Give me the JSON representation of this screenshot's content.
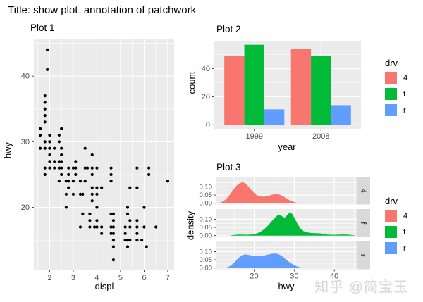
{
  "page": {
    "title": "Title: show plot_annotation of patchwork",
    "watermark": "知乎 @简宝玉"
  },
  "colors": {
    "panel": "#EBEBEB",
    "grid": "#FFFFFF",
    "strip": "#D9D9D9",
    "axis_text": "#4D4D4D",
    "tick": "#333333",
    "point": "#000000",
    "drv_4": "#F8766D",
    "drv_f": "#00BA38",
    "drv_r": "#619CFF"
  },
  "chart_data": [
    {
      "type": "scatter",
      "title": "Plot 1",
      "xlabel": "displ",
      "ylabel": "hwy",
      "x_ticks": [
        2,
        3,
        4,
        5,
        6,
        7
      ],
      "x_minor": [
        1.5,
        2.5,
        3.5,
        4.5,
        5.5,
        6.5
      ],
      "y_ticks": [
        20,
        30,
        40
      ],
      "y_minor": [
        15,
        25,
        35,
        45
      ],
      "xlim": [
        1.33,
        7.27
      ],
      "ylim": [
        10.4,
        45.6
      ],
      "points": [
        [
          1.6,
          29
        ],
        [
          1.6,
          31
        ],
        [
          1.6,
          32
        ],
        [
          1.8,
          25
        ],
        [
          1.8,
          26
        ],
        [
          1.8,
          29
        ],
        [
          1.8,
          30
        ],
        [
          1.8,
          33
        ],
        [
          1.8,
          34
        ],
        [
          1.8,
          35
        ],
        [
          1.8,
          36
        ],
        [
          1.8,
          37
        ],
        [
          1.9,
          41
        ],
        [
          1.9,
          44
        ],
        [
          2.0,
          26
        ],
        [
          2.0,
          27
        ],
        [
          2.0,
          28
        ],
        [
          2.0,
          29
        ],
        [
          2.0,
          30
        ],
        [
          2.0,
          31
        ],
        [
          2.2,
          26
        ],
        [
          2.2,
          27
        ],
        [
          2.2,
          29
        ],
        [
          2.4,
          24
        ],
        [
          2.4,
          26
        ],
        [
          2.4,
          27
        ],
        [
          2.4,
          30
        ],
        [
          2.4,
          31
        ],
        [
          2.5,
          25
        ],
        [
          2.5,
          26
        ],
        [
          2.5,
          27
        ],
        [
          2.5,
          28
        ],
        [
          2.5,
          29
        ],
        [
          2.5,
          32
        ],
        [
          2.7,
          20
        ],
        [
          2.7,
          22
        ],
        [
          2.7,
          24
        ],
        [
          2.8,
          23
        ],
        [
          2.8,
          24
        ],
        [
          2.8,
          25
        ],
        [
          2.8,
          26
        ],
        [
          3.0,
          22
        ],
        [
          3.0,
          24
        ],
        [
          3.0,
          26
        ],
        [
          3.1,
          25
        ],
        [
          3.1,
          26
        ],
        [
          3.1,
          27
        ],
        [
          3.3,
          17
        ],
        [
          3.3,
          22
        ],
        [
          3.3,
          24
        ],
        [
          3.4,
          19
        ],
        [
          3.4,
          22
        ],
        [
          3.5,
          24
        ],
        [
          3.5,
          26
        ],
        [
          3.5,
          29
        ],
        [
          3.6,
          26
        ],
        [
          3.7,
          17
        ],
        [
          3.7,
          18
        ],
        [
          3.7,
          19
        ],
        [
          3.8,
          21
        ],
        [
          3.8,
          22
        ],
        [
          3.8,
          23
        ],
        [
          3.8,
          25
        ],
        [
          3.8,
          26
        ],
        [
          3.8,
          28
        ],
        [
          3.9,
          17
        ],
        [
          4.0,
          17
        ],
        [
          4.0,
          18
        ],
        [
          4.0,
          20
        ],
        [
          4.0,
          22
        ],
        [
          4.0,
          23
        ],
        [
          4.0,
          26
        ],
        [
          4.2,
          16
        ],
        [
          4.2,
          17
        ],
        [
          4.2,
          23
        ],
        [
          4.6,
          16
        ],
        [
          4.6,
          17
        ],
        [
          4.6,
          19
        ],
        [
          4.6,
          24
        ],
        [
          4.6,
          25
        ],
        [
          4.6,
          26
        ],
        [
          4.7,
          12
        ],
        [
          4.7,
          14
        ],
        [
          4.7,
          15
        ],
        [
          4.7,
          16
        ],
        [
          4.7,
          17
        ],
        [
          4.7,
          18
        ],
        [
          4.7,
          19
        ],
        [
          5.2,
          15
        ],
        [
          5.2,
          16
        ],
        [
          5.2,
          17
        ],
        [
          5.3,
          14
        ],
        [
          5.3,
          15
        ],
        [
          5.3,
          19
        ],
        [
          5.3,
          20
        ],
        [
          5.4,
          15
        ],
        [
          5.4,
          17
        ],
        [
          5.4,
          18
        ],
        [
          5.4,
          23
        ],
        [
          5.7,
          15
        ],
        [
          5.7,
          16
        ],
        [
          5.7,
          17
        ],
        [
          5.7,
          18
        ],
        [
          5.7,
          23
        ],
        [
          5.7,
          26
        ],
        [
          5.9,
          15
        ],
        [
          6.0,
          17
        ],
        [
          6.0,
          20
        ],
        [
          6.1,
          14
        ],
        [
          6.2,
          25
        ],
        [
          6.2,
          26
        ],
        [
          6.5,
          17
        ],
        [
          7.0,
          24
        ]
      ]
    },
    {
      "type": "bar",
      "title": "Plot 2",
      "xlabel": "year",
      "ylabel": "count",
      "categories": [
        "1999",
        "2008"
      ],
      "series": [
        {
          "name": "4",
          "color": "#F8766D",
          "values": [
            49,
            54
          ]
        },
        {
          "name": "f",
          "color": "#00BA38",
          "values": [
            57,
            49
          ]
        },
        {
          "name": "r",
          "color": "#619CFF",
          "values": [
            11,
            14
          ]
        }
      ],
      "y_ticks": [
        0,
        20,
        40
      ],
      "y_minor": [
        10,
        30,
        50
      ],
      "ylim": [
        0,
        57
      ],
      "legend": {
        "title": "drv",
        "items": [
          {
            "label": "4",
            "color": "#F8766D"
          },
          {
            "label": "f",
            "color": "#00BA38"
          },
          {
            "label": "r",
            "color": "#619CFF"
          }
        ]
      }
    },
    {
      "type": "density",
      "title": "Plot 3",
      "xlabel": "hwy",
      "ylabel": "density",
      "x_ticks": [
        20,
        30,
        40
      ],
      "x_minor": [
        15,
        25,
        35,
        45
      ],
      "y_ticks": [
        0,
        0.05,
        0.1
      ],
      "y_tick_labels": [
        "0.00",
        "0.05",
        "0.10"
      ],
      "y_minor": [
        0.025,
        0.075,
        0.125
      ],
      "xlim": [
        10.4,
        45.6
      ],
      "facets": [
        {
          "label": "4",
          "color": "#F8766D",
          "curve": [
            [
              11,
              0.001
            ],
            [
              12,
              0.008
            ],
            [
              13,
              0.025
            ],
            [
              14,
              0.055
            ],
            [
              15,
              0.09
            ],
            [
              16,
              0.117
            ],
            [
              17,
              0.128
            ],
            [
              17.8,
              0.122
            ],
            [
              18.6,
              0.1
            ],
            [
              19.5,
              0.075
            ],
            [
              20.5,
              0.052
            ],
            [
              21.5,
              0.041
            ],
            [
              22.5,
              0.04
            ],
            [
              23.5,
              0.045
            ],
            [
              24.5,
              0.052
            ],
            [
              25.5,
              0.056
            ],
            [
              26.3,
              0.053
            ],
            [
              27.2,
              0.043
            ],
            [
              28,
              0.03
            ],
            [
              29,
              0.017
            ],
            [
              30,
              0.007
            ],
            [
              31,
              0.002
            ],
            [
              31.5,
              0
            ]
          ]
        },
        {
          "label": "f",
          "color": "#00BA38",
          "curve": [
            [
              14,
              0.001
            ],
            [
              15,
              0.004
            ],
            [
              16,
              0.006
            ],
            [
              17,
              0.006
            ],
            [
              18,
              0.005
            ],
            [
              19,
              0.006
            ],
            [
              20,
              0.009
            ],
            [
              21,
              0.016
            ],
            [
              22,
              0.03
            ],
            [
              23,
              0.05
            ],
            [
              24,
              0.077
            ],
            [
              25,
              0.105
            ],
            [
              25.8,
              0.124
            ],
            [
              26.3,
              0.128
            ],
            [
              27,
              0.117
            ],
            [
              27.6,
              0.109
            ],
            [
              28.3,
              0.127
            ],
            [
              28.9,
              0.143
            ],
            [
              29.5,
              0.132
            ],
            [
              30.1,
              0.105
            ],
            [
              30.8,
              0.072
            ],
            [
              31.5,
              0.045
            ],
            [
              32.3,
              0.028
            ],
            [
              33.2,
              0.02
            ],
            [
              34.2,
              0.016
            ],
            [
              35.2,
              0.015
            ],
            [
              36.2,
              0.014
            ],
            [
              37.2,
              0.011
            ],
            [
              38.2,
              0.007
            ],
            [
              39.2,
              0.005
            ],
            [
              40.2,
              0.005
            ],
            [
              41.2,
              0.006
            ],
            [
              42.2,
              0.007
            ],
            [
              43.2,
              0.006
            ],
            [
              44.2,
              0.004
            ],
            [
              45,
              0.002
            ],
            [
              45.5,
              0
            ]
          ]
        },
        {
          "label": "r",
          "color": "#619CFF",
          "curve": [
            [
              13,
              0.002
            ],
            [
              14,
              0.012
            ],
            [
              15,
              0.032
            ],
            [
              16,
              0.06
            ],
            [
              17,
              0.078
            ],
            [
              17.8,
              0.083
            ],
            [
              18.6,
              0.08
            ],
            [
              19.5,
              0.075
            ],
            [
              20.5,
              0.072
            ],
            [
              21.5,
              0.072
            ],
            [
              22.5,
              0.076
            ],
            [
              23.5,
              0.082
            ],
            [
              24.5,
              0.087
            ],
            [
              25.5,
              0.088
            ],
            [
              26.3,
              0.082
            ],
            [
              27.2,
              0.068
            ],
            [
              28,
              0.05
            ],
            [
              29,
              0.032
            ],
            [
              30,
              0.017
            ],
            [
              31,
              0.007
            ],
            [
              32,
              0.002
            ],
            [
              32.5,
              0
            ]
          ]
        }
      ],
      "legend": {
        "title": "drv",
        "items": [
          {
            "label": "4",
            "color": "#F8766D"
          },
          {
            "label": "f",
            "color": "#00BA38"
          },
          {
            "label": "r",
            "color": "#619CFF"
          }
        ]
      }
    }
  ]
}
